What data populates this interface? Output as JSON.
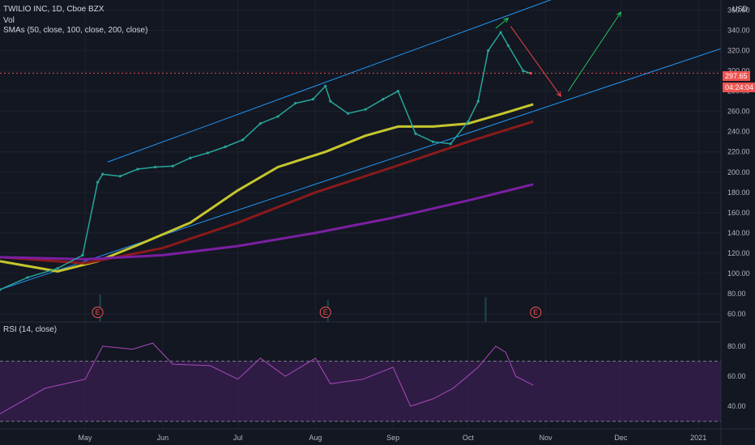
{
  "header": {
    "symbol": "TWILIO INC, 1D, Cboe BZX",
    "vol": "Vol",
    "smas": "SMAs (50, close, 100, close, 200, close)",
    "rsi_label": "RSI (14, close)",
    "currency": "USD"
  },
  "price_tag": {
    "price": "297.65",
    "countdown": "04:24:04"
  },
  "earnings_marker": "E",
  "colors": {
    "background": "#131722",
    "up": "#26a69a",
    "down": "#ef5350",
    "sma50": "#c6c62e",
    "sma100": "#8b1a1a",
    "sma200": "#7b1fa2",
    "channel": "#2196f3",
    "rsi_line": "#ab47bc",
    "rsi_band": "#3b1f54",
    "arrow_up": "#22c55e",
    "arrow_down": "#ef4444"
  },
  "chart_data": {
    "type": "line",
    "price_axis": {
      "ticks": [
        60,
        80,
        100,
        120,
        140,
        160,
        180,
        200,
        220,
        240,
        260,
        280,
        300,
        320,
        340,
        360
      ],
      "range": [
        52,
        370
      ]
    },
    "rsi_axis": {
      "ticks": [
        40,
        60,
        80
      ],
      "range": [
        25,
        95
      ],
      "bands": [
        70,
        30
      ]
    },
    "time_axis": {
      "labels": [
        "May",
        "Jun",
        "Jul",
        "Aug",
        "Sep",
        "Oct",
        "Nov",
        "Dec",
        "2021"
      ],
      "dates": [
        "2020-05-01",
        "2020-06-01",
        "2020-07-01",
        "2020-08-01",
        "2020-09-01",
        "2020-10-01",
        "2020-11-01",
        "2020-12-01",
        "2021-01-01"
      ],
      "range": [
        "2020-03-28",
        "2021-01-10"
      ]
    },
    "close_series": {
      "name": "Close",
      "x": [
        "2020-03-28",
        "2020-04-08",
        "2020-04-20",
        "2020-04-30",
        "2020-05-06",
        "2020-05-08",
        "2020-05-15",
        "2020-05-22",
        "2020-05-29",
        "2020-06-05",
        "2020-06-12",
        "2020-06-19",
        "2020-06-26",
        "2020-07-03",
        "2020-07-10",
        "2020-07-17",
        "2020-07-24",
        "2020-07-31",
        "2020-08-05",
        "2020-08-07",
        "2020-08-14",
        "2020-08-21",
        "2020-08-28",
        "2020-09-03",
        "2020-09-10",
        "2020-09-17",
        "2020-09-24",
        "2020-10-01",
        "2020-10-05",
        "2020-10-09",
        "2020-10-14",
        "2020-10-17",
        "2020-10-23",
        "2020-10-26"
      ],
      "values": [
        84,
        96,
        105,
        118,
        190,
        198,
        196,
        203,
        205,
        206,
        214,
        219,
        225,
        232,
        248,
        255,
        268,
        272,
        285,
        270,
        258,
        262,
        272,
        280,
        238,
        230,
        228,
        250,
        270,
        320,
        338,
        325,
        300,
        297.65
      ]
    },
    "sma_series": [
      {
        "name": "SMA 50",
        "x": [
          "2020-03-28",
          "2020-04-20",
          "2020-05-06",
          "2020-05-22",
          "2020-06-12",
          "2020-07-01",
          "2020-07-17",
          "2020-08-05",
          "2020-08-21",
          "2020-09-03",
          "2020-09-17",
          "2020-10-01",
          "2020-10-15",
          "2020-10-27"
        ],
        "values": [
          112,
          102,
          112,
          128,
          150,
          182,
          205,
          220,
          236,
          245,
          245,
          248,
          258,
          267
        ]
      },
      {
        "name": "SMA 100",
        "x": [
          "2020-03-28",
          "2020-05-01",
          "2020-06-01",
          "2020-07-01",
          "2020-08-01",
          "2020-09-01",
          "2020-10-01",
          "2020-10-27"
        ],
        "values": [
          116,
          110,
          125,
          150,
          180,
          205,
          230,
          250
        ]
      },
      {
        "name": "SMA 200",
        "x": [
          "2020-03-28",
          "2020-05-01",
          "2020-06-01",
          "2020-07-01",
          "2020-08-01",
          "2020-09-01",
          "2020-10-01",
          "2020-10-27"
        ],
        "values": [
          116,
          114,
          118,
          127,
          140,
          155,
          172,
          188
        ]
      }
    ],
    "volume": {
      "note": "volume bars shown without a scale",
      "x": [
        "2020-05-07",
        "2020-08-06",
        "2020-10-08"
      ],
      "relative": [
        1.0,
        0.8,
        0.9
      ]
    },
    "rsi_series": {
      "name": "RSI",
      "x": [
        "2020-03-28",
        "2020-04-15",
        "2020-05-01",
        "2020-05-08",
        "2020-05-20",
        "2020-05-28",
        "2020-06-05",
        "2020-06-20",
        "2020-07-01",
        "2020-07-10",
        "2020-07-20",
        "2020-08-01",
        "2020-08-07",
        "2020-08-20",
        "2020-09-01",
        "2020-09-08",
        "2020-09-17",
        "2020-09-25",
        "2020-10-05",
        "2020-10-12",
        "2020-10-16",
        "2020-10-20",
        "2020-10-27"
      ],
      "values": [
        35,
        52,
        58,
        80,
        78,
        82,
        68,
        67,
        58,
        72,
        60,
        72,
        55,
        58,
        66,
        40,
        45,
        52,
        66,
        80,
        76,
        60,
        54
      ]
    },
    "channel_lines": [
      {
        "name": "upper",
        "from": {
          "x": "2020-05-10",
          "y": 210
        },
        "to": {
          "x": "2020-11-05",
          "y": 372
        }
      },
      {
        "name": "lower",
        "from": {
          "x": "2020-03-28",
          "y": 84
        },
        "to": {
          "x": "2021-01-10",
          "y": 322
        }
      }
    ],
    "arrows": [
      {
        "color": "green",
        "from": {
          "x": "2020-10-12",
          "y": 342
        },
        "to": {
          "x": "2020-10-17",
          "y": 352
        }
      },
      {
        "color": "red",
        "from": {
          "x": "2020-10-18",
          "y": 344
        },
        "to": {
          "x": "2020-11-07",
          "y": 275
        }
      },
      {
        "color": "green",
        "from": {
          "x": "2020-11-10",
          "y": 280
        },
        "to": {
          "x": "2020-12-01",
          "y": 358
        }
      }
    ],
    "earnings_dates": [
      "2020-05-06",
      "2020-08-05",
      "2020-10-28"
    ]
  }
}
